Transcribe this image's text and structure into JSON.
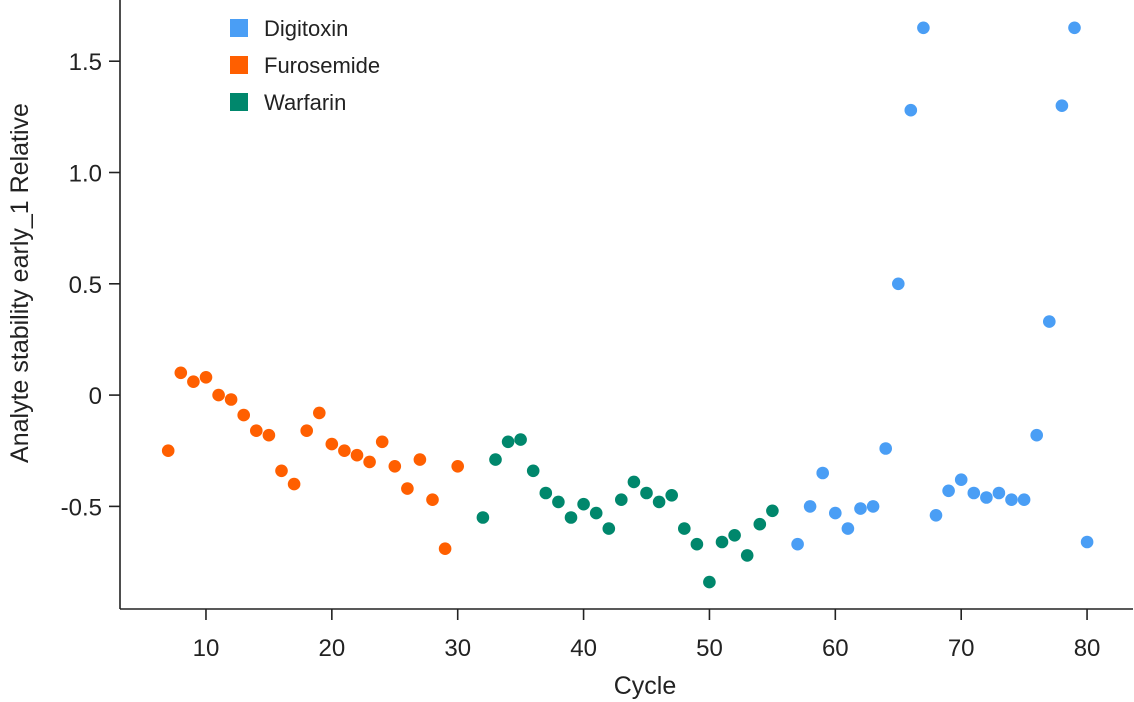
{
  "chart_data": {
    "type": "scatter",
    "title": "",
    "xlabel": "Cycle",
    "ylabel": "Analyte stability early_1 Relative",
    "xlim": [
      3.17,
      83.65
    ],
    "ylim": [
      -0.961,
      1.775
    ],
    "xticks": [
      10,
      20,
      30,
      40,
      50,
      60,
      70,
      80
    ],
    "xtick_labels": [
      "10",
      "20",
      "30",
      "40",
      "50",
      "60",
      "70",
      "80"
    ],
    "yticks": [
      1.5,
      1.0,
      0.5,
      0,
      -0.5
    ],
    "ytick_labels": [
      "1.5",
      "1.0",
      "0.5",
      "0",
      "-0.5"
    ],
    "grid": false,
    "legend_position": "top-left",
    "series": [
      {
        "name": "Digitoxin",
        "color": "#4a9ef5",
        "x": [
          57,
          58,
          59,
          60,
          61,
          62,
          63,
          64,
          65,
          66,
          67,
          68,
          69,
          70,
          71,
          72,
          73,
          74,
          75,
          76,
          77,
          78,
          79,
          80
        ],
        "y": [
          -0.67,
          -0.5,
          -0.35,
          -0.53,
          -0.6,
          -0.51,
          -0.5,
          -0.24,
          0.5,
          1.28,
          1.65,
          -0.54,
          -0.43,
          -0.38,
          -0.44,
          -0.46,
          -0.44,
          -0.47,
          -0.47,
          -0.18,
          0.33,
          1.3,
          1.65,
          -0.66
        ]
      },
      {
        "name": "Furosemide",
        "color": "#ff5f00",
        "x": [
          7,
          8,
          9,
          10,
          11,
          12,
          13,
          14,
          15,
          16,
          17,
          18,
          19,
          20,
          21,
          22,
          23,
          24,
          25,
          26,
          27,
          28,
          29,
          30
        ],
        "y": [
          -0.25,
          0.1,
          0.06,
          0.08,
          0.0,
          -0.02,
          -0.09,
          -0.16,
          -0.18,
          -0.34,
          -0.4,
          -0.16,
          -0.08,
          -0.22,
          -0.25,
          -0.27,
          -0.3,
          -0.21,
          -0.32,
          -0.42,
          -0.29,
          -0.47,
          -0.69,
          -0.32
        ]
      },
      {
        "name": "Warfarin",
        "color": "#00876c",
        "x": [
          32,
          33,
          34,
          35,
          36,
          37,
          38,
          39,
          40,
          41,
          42,
          43,
          44,
          45,
          46,
          47,
          48,
          49,
          50,
          51,
          52,
          53,
          54,
          55
        ],
        "y": [
          -0.55,
          -0.29,
          -0.21,
          -0.2,
          -0.34,
          -0.44,
          -0.48,
          -0.55,
          -0.49,
          -0.53,
          -0.6,
          -0.47,
          -0.39,
          -0.44,
          -0.48,
          -0.45,
          -0.6,
          -0.67,
          -0.84,
          -0.66,
          -0.63,
          -0.72,
          -0.58,
          -0.52
        ]
      }
    ]
  }
}
